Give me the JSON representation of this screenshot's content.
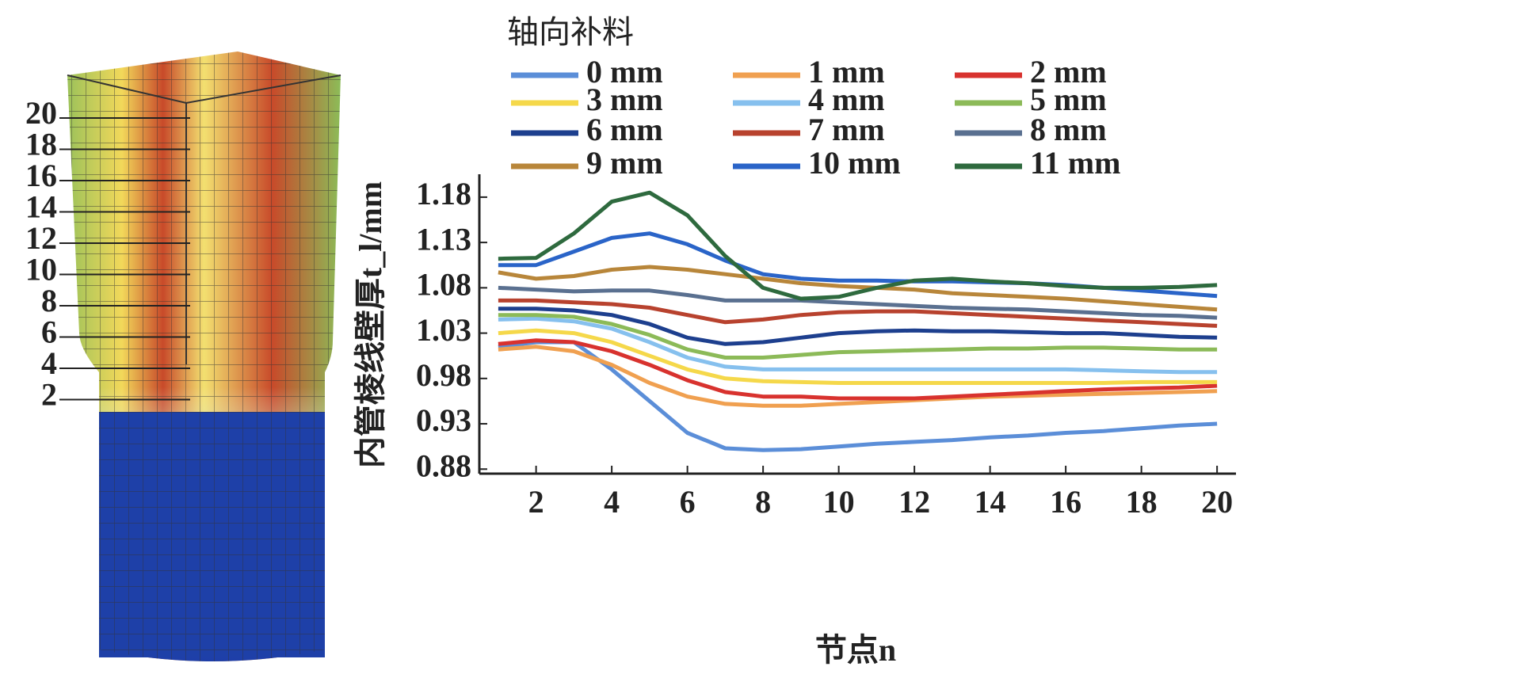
{
  "model_labels": {
    "nodes": [
      20,
      18,
      16,
      14,
      12,
      10,
      8,
      6,
      4,
      2
    ]
  },
  "chart_data": {
    "type": "line",
    "legend_title": "轴向补料",
    "x_label": "节点n",
    "y_label": "内管棱线壁厚t_l/mm",
    "x": [
      1,
      2,
      3,
      4,
      5,
      6,
      7,
      8,
      9,
      10,
      11,
      12,
      13,
      14,
      15,
      16,
      17,
      18,
      19,
      20
    ],
    "xlim": [
      0.5,
      20.5
    ],
    "xticks": [
      2,
      4,
      6,
      8,
      10,
      12,
      14,
      16,
      18,
      20
    ],
    "ylim": [
      0.875,
      1.2
    ],
    "yticks": [
      0.88,
      0.93,
      0.98,
      1.03,
      1.08,
      1.13,
      1.18
    ],
    "series": [
      {
        "name": "0 mm",
        "color": "#5b8ed8",
        "values": [
          1.015,
          1.02,
          1.02,
          0.99,
          0.955,
          0.92,
          0.903,
          0.901,
          0.902,
          0.905,
          0.908,
          0.91,
          0.912,
          0.915,
          0.917,
          0.92,
          0.922,
          0.925,
          0.928,
          0.93
        ]
      },
      {
        "name": "1 mm",
        "color": "#f0a050",
        "values": [
          1.012,
          1.015,
          1.01,
          0.995,
          0.975,
          0.96,
          0.952,
          0.95,
          0.95,
          0.952,
          0.954,
          0.956,
          0.958,
          0.96,
          0.961,
          0.962,
          0.963,
          0.964,
          0.965,
          0.966
        ]
      },
      {
        "name": "2 mm",
        "color": "#d8322e",
        "values": [
          1.018,
          1.022,
          1.02,
          1.01,
          0.995,
          0.978,
          0.965,
          0.96,
          0.96,
          0.958,
          0.958,
          0.958,
          0.96,
          0.962,
          0.964,
          0.966,
          0.968,
          0.969,
          0.97,
          0.972
        ]
      },
      {
        "name": "3 mm",
        "color": "#f5d84a",
        "values": [
          1.03,
          1.033,
          1.03,
          1.02,
          1.005,
          0.99,
          0.98,
          0.977,
          0.976,
          0.975,
          0.975,
          0.975,
          0.975,
          0.975,
          0.975,
          0.975,
          0.975,
          0.976,
          0.976,
          0.976
        ]
      },
      {
        "name": "4 mm",
        "color": "#86c0ee",
        "values": [
          1.045,
          1.046,
          1.043,
          1.035,
          1.02,
          1.003,
          0.993,
          0.99,
          0.99,
          0.99,
          0.99,
          0.99,
          0.99,
          0.99,
          0.99,
          0.99,
          0.989,
          0.988,
          0.987,
          0.987
        ]
      },
      {
        "name": "5 mm",
        "color": "#8cba58",
        "values": [
          1.05,
          1.05,
          1.048,
          1.04,
          1.028,
          1.012,
          1.003,
          1.003,
          1.006,
          1.009,
          1.01,
          1.011,
          1.012,
          1.013,
          1.013,
          1.014,
          1.014,
          1.013,
          1.012,
          1.012
        ]
      },
      {
        "name": "6 mm",
        "color": "#1d3f8e",
        "values": [
          1.057,
          1.057,
          1.055,
          1.05,
          1.04,
          1.025,
          1.018,
          1.02,
          1.025,
          1.03,
          1.032,
          1.033,
          1.032,
          1.032,
          1.031,
          1.03,
          1.03,
          1.028,
          1.026,
          1.025
        ]
      },
      {
        "name": "7 mm",
        "color": "#b8422e",
        "values": [
          1.066,
          1.066,
          1.064,
          1.062,
          1.058,
          1.05,
          1.042,
          1.045,
          1.05,
          1.053,
          1.054,
          1.054,
          1.052,
          1.05,
          1.048,
          1.046,
          1.044,
          1.042,
          1.04,
          1.038
        ]
      },
      {
        "name": "8 mm",
        "color": "#5a7090",
        "values": [
          1.08,
          1.078,
          1.076,
          1.077,
          1.077,
          1.072,
          1.066,
          1.066,
          1.066,
          1.064,
          1.062,
          1.06,
          1.058,
          1.057,
          1.056,
          1.054,
          1.052,
          1.05,
          1.049,
          1.047
        ]
      },
      {
        "name": "9 mm",
        "color": "#b8863a",
        "values": [
          1.097,
          1.09,
          1.093,
          1.1,
          1.103,
          1.1,
          1.095,
          1.09,
          1.085,
          1.082,
          1.08,
          1.078,
          1.074,
          1.072,
          1.07,
          1.068,
          1.065,
          1.062,
          1.059,
          1.056
        ]
      },
      {
        "name": "10 mm",
        "color": "#2a64c8",
        "values": [
          1.105,
          1.105,
          1.12,
          1.135,
          1.14,
          1.128,
          1.11,
          1.095,
          1.09,
          1.088,
          1.088,
          1.087,
          1.087,
          1.086,
          1.085,
          1.083,
          1.08,
          1.077,
          1.074,
          1.071
        ]
      },
      {
        "name": "11 mm",
        "color": "#2e6a3e",
        "values": [
          1.112,
          1.113,
          1.14,
          1.175,
          1.185,
          1.16,
          1.115,
          1.08,
          1.068,
          1.07,
          1.08,
          1.088,
          1.09,
          1.087,
          1.085,
          1.082,
          1.08,
          1.08,
          1.081,
          1.083
        ]
      }
    ]
  }
}
